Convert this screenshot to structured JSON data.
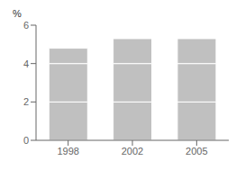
{
  "chart_data": {
    "type": "bar",
    "stacked": true,
    "ylabel": "%",
    "categories": [
      "1998",
      "2002",
      "2005"
    ],
    "series": [
      {
        "color": "#c0c0c0",
        "values": [
          2.0,
          2.0,
          2.0
        ]
      },
      {
        "color": "#c0c0c0",
        "values": [
          2.0,
          2.0,
          2.0
        ]
      },
      {
        "color": "#c0c0c0",
        "values": [
          0.8,
          1.3,
          1.3
        ]
      }
    ],
    "ylim": [
      0,
      6
    ],
    "yticks": [
      0,
      2,
      4,
      6
    ],
    "grid": false
  }
}
